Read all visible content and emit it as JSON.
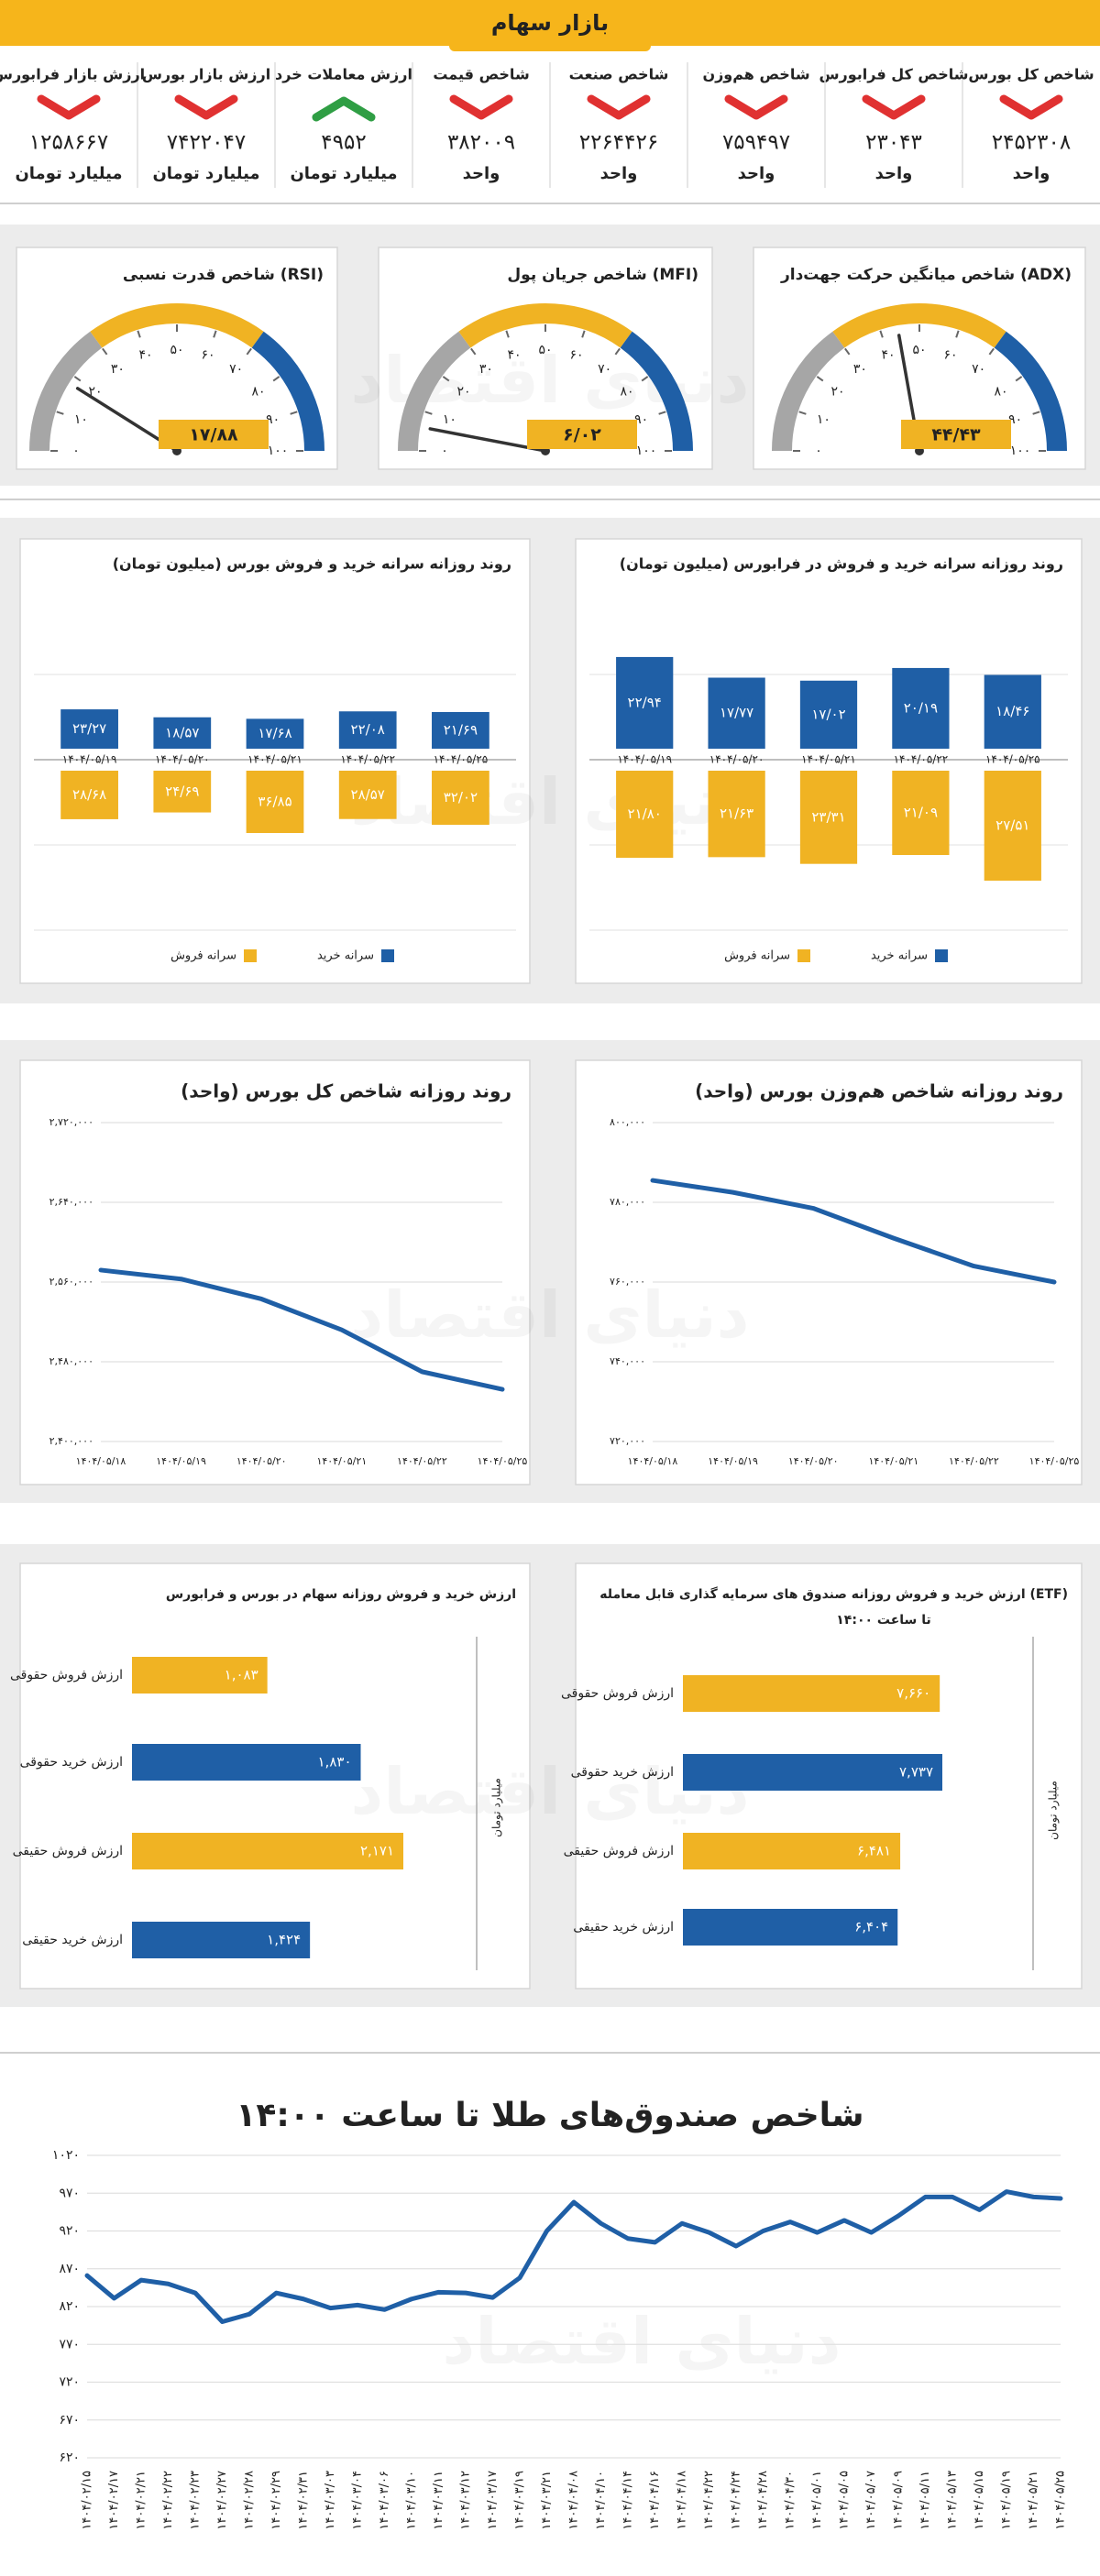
{
  "header": {
    "title": "بازار سهام"
  },
  "watermark": "دنیای اقتصاد",
  "indicators": [
    {
      "label": "شاخص کل بورس",
      "value": "۲۴۵۲۳۰۸",
      "unit": "واحد",
      "trend": "down",
      "color": "#e03131"
    },
    {
      "label": "شاخص کل فرابورس",
      "value": "۲۳۰۴۳",
      "unit": "واحد",
      "trend": "down",
      "color": "#e03131"
    },
    {
      "label": "شاخص هم‌وزن",
      "value": "۷۵۹۴۹۷",
      "unit": "واحد",
      "trend": "down",
      "color": "#e03131"
    },
    {
      "label": "شاخص صنعت",
      "value": "۲۲۶۴۴۲۶",
      "unit": "واحد",
      "trend": "down",
      "color": "#e03131"
    },
    {
      "label": "شاخص قیمت",
      "value": "۳۸۲۰۰۹",
      "unit": "واحد",
      "trend": "down",
      "color": "#e03131"
    },
    {
      "label": "ارزش معاملات خرد",
      "value": "۴۹۵۲",
      "unit": "میلیارد تومان",
      "trend": "up",
      "color": "#2f9e44"
    },
    {
      "label": "ارزش بازار بورس",
      "value": "۷۴۲۲۰۴۷",
      "unit": "میلیارد تومان",
      "trend": "down",
      "color": "#e03131"
    },
    {
      "label": "ارزش بازار فرابورس",
      "value": "۱۲۵۸۶۶۷",
      "unit": "میلیارد تومان",
      "trend": "down",
      "color": "#e03131"
    }
  ],
  "chart_data": [
    {
      "type": "gauge",
      "title": "شاخص میانگین حرکت جهت‌دار (ADX)",
      "value": 44.43,
      "value_label": "۴۴/۴۳",
      "ylim": [
        0,
        100
      ],
      "yticks": [
        {
          "value": 0,
          "label": "۰"
        },
        {
          "value": 10,
          "label": "۱۰"
        },
        {
          "value": 20,
          "label": "۲۰"
        },
        {
          "value": 30,
          "label": "۳۰"
        },
        {
          "value": 40,
          "label": "۴۰"
        },
        {
          "value": 50,
          "label": "۵۰"
        },
        {
          "value": 60,
          "label": "۶۰"
        },
        {
          "value": 70,
          "label": "۷۰"
        },
        {
          "value": 80,
          "label": "۸۰"
        },
        {
          "value": 90,
          "label": "۹۰"
        },
        {
          "value": 100,
          "label": "۱۰۰"
        }
      ],
      "bands": [
        {
          "from": 0,
          "to": 30,
          "color": "#a6a6a6"
        },
        {
          "from": 30,
          "to": 70,
          "color": "#f0b323"
        },
        {
          "from": 70,
          "to": 100,
          "color": "#1f5fa6"
        }
      ]
    },
    {
      "type": "gauge",
      "title": "شاخص جریان پول (MFI)",
      "value": 6.02,
      "value_label": "۶/۰۲",
      "ylim": [
        0,
        100
      ],
      "yticks": [
        {
          "value": 0,
          "label": "۰"
        },
        {
          "value": 10,
          "label": "۱۰"
        },
        {
          "value": 20,
          "label": "۲۰"
        },
        {
          "value": 30,
          "label": "۳۰"
        },
        {
          "value": 40,
          "label": "۴۰"
        },
        {
          "value": 50,
          "label": "۵۰"
        },
        {
          "value": 60,
          "label": "۶۰"
        },
        {
          "value": 70,
          "label": "۷۰"
        },
        {
          "value": 80,
          "label": "۸۰"
        },
        {
          "value": 90,
          "label": "۹۰"
        },
        {
          "value": 100,
          "label": "۱۰۰"
        }
      ],
      "bands": [
        {
          "from": 0,
          "to": 30,
          "color": "#a6a6a6"
        },
        {
          "from": 30,
          "to": 70,
          "color": "#f0b323"
        },
        {
          "from": 70,
          "to": 100,
          "color": "#1f5fa6"
        }
      ]
    },
    {
      "type": "gauge",
      "title": "شاخص قدرت نسبی (RSI)",
      "value": 17.88,
      "value_label": "۱۷/۸۸",
      "ylim": [
        0,
        100
      ],
      "yticks": [
        {
          "value": 0,
          "label": "۰"
        },
        {
          "value": 10,
          "label": "۱۰"
        },
        {
          "value": 20,
          "label": "۲۰"
        },
        {
          "value": 30,
          "label": "۳۰"
        },
        {
          "value": 40,
          "label": "۴۰"
        },
        {
          "value": 50,
          "label": "۵۰"
        },
        {
          "value": 60,
          "label": "۶۰"
        },
        {
          "value": 70,
          "label": "۷۰"
        },
        {
          "value": 80,
          "label": "۸۰"
        },
        {
          "value": 90,
          "label": "۹۰"
        },
        {
          "value": 100,
          "label": "۱۰۰"
        }
      ],
      "bands": [
        {
          "from": 0,
          "to": 30,
          "color": "#a6a6a6"
        },
        {
          "from": 30,
          "to": 70,
          "color": "#f0b323"
        },
        {
          "from": 70,
          "to": 100,
          "color": "#1f5fa6"
        }
      ]
    },
    {
      "type": "diverging",
      "title": "روند روزانه سرانه خرید و فروش در فرابورس (میلیون تومان)",
      "categories": [
        "۱۴۰۴/۰۵/۱۹",
        "۱۴۰۴/۰۵/۲۰",
        "۱۴۰۴/۰۵/۲۱",
        "۱۴۰۴/۰۵/۲۲",
        "۱۴۰۴/۰۵/۲۵"
      ],
      "series": [
        {
          "name": "سرانه خرید",
          "color": "#1f5fa6",
          "values": [
            22.94,
            17.77,
            17.02,
            20.19,
            18.46
          ],
          "value_labels": [
            "۲۲/۹۴",
            "۱۷/۷۷",
            "۱۷/۰۲",
            "۲۰/۱۹",
            "۱۸/۴۶"
          ]
        },
        {
          "name": "سرانه فروش",
          "color": "#f0b323",
          "values": [
            21.8,
            21.63,
            23.31,
            21.09,
            27.51
          ],
          "value_labels": [
            "۲۱/۸۰",
            "۲۱/۶۳",
            "۲۳/۳۱",
            "۲۱/۰۹",
            "۲۷/۵۱"
          ]
        }
      ]
    },
    {
      "type": "diverging",
      "title": "روند روزانه سرانه خرید و فروش بورس (میلیون تومان)",
      "categories": [
        "۱۴۰۴/۰۵/۱۹",
        "۱۴۰۴/۰۵/۲۰",
        "۱۴۰۴/۰۵/۲۱",
        "۱۴۰۴/۰۵/۲۲",
        "۱۴۰۴/۰۵/۲۵"
      ],
      "series": [
        {
          "name": "سرانه خرید",
          "color": "#1f5fa6",
          "values": [
            23.27,
            18.57,
            17.68,
            22.08,
            21.69
          ],
          "value_labels": [
            "۲۳/۲۷",
            "۱۸/۵۷",
            "۱۷/۶۸",
            "۲۲/۰۸",
            "۲۱/۶۹"
          ]
        },
        {
          "name": "سرانه فروش",
          "color": "#f0b323",
          "values": [
            28.68,
            24.69,
            36.85,
            28.57,
            32.02
          ],
          "value_labels": [
            "۲۸/۶۸",
            "۲۴/۶۹",
            "۳۶/۸۵",
            "۲۸/۵۷",
            "۳۲/۰۲"
          ]
        }
      ]
    },
    {
      "type": "line",
      "title": "روند روزانه شاخص هم‌وزن بورس (واحد)",
      "color": "#1f5fa6",
      "grid": true,
      "categories": [
        "۱۴۰۴/۰۵/۱۸",
        "۱۴۰۴/۰۵/۱۹",
        "۱۴۰۴/۰۵/۲۰",
        "۱۴۰۴/۰۵/۲۱",
        "۱۴۰۴/۰۵/۲۲",
        "۱۴۰۴/۰۵/۲۵"
      ],
      "values": [
        785500,
        782500,
        778500,
        771000,
        764000,
        760000
      ],
      "ylim": [
        720000,
        800000
      ],
      "yticks": [
        {
          "value": 720000,
          "label": "۷۲۰,۰۰۰"
        },
        {
          "value": 740000,
          "label": "۷۴۰,۰۰۰"
        },
        {
          "value": 760000,
          "label": "۷۶۰,۰۰۰"
        },
        {
          "value": 780000,
          "label": "۷۸۰,۰۰۰"
        },
        {
          "value": 800000,
          "label": "۸۰۰,۰۰۰"
        }
      ]
    },
    {
      "type": "line",
      "title": "روند روزانه شاخص کل بورس (واحد)",
      "color": "#1f5fa6",
      "grid": true,
      "categories": [
        "۱۴۰۴/۰۵/۱۸",
        "۱۴۰۴/۰۵/۱۹",
        "۱۴۰۴/۰۵/۲۰",
        "۱۴۰۴/۰۵/۲۱",
        "۱۴۰۴/۰۵/۲۲",
        "۱۴۰۴/۰۵/۲۵"
      ],
      "values": [
        2572000,
        2563000,
        2543000,
        2512000,
        2470000,
        2452308
      ],
      "ylim": [
        2400000,
        2720000
      ],
      "yticks": [
        {
          "value": 2400000,
          "label": "۲,۴۰۰,۰۰۰"
        },
        {
          "value": 2480000,
          "label": "۲,۴۸۰,۰۰۰"
        },
        {
          "value": 2560000,
          "label": "۲,۵۶۰,۰۰۰"
        },
        {
          "value": 2640000,
          "label": "۲,۶۴۰,۰۰۰"
        },
        {
          "value": 2720000,
          "label": "۲,۷۲۰,۰۰۰"
        }
      ]
    },
    {
      "type": "hbar",
      "title": "ارزش خرید و فروش روزانه صندوق های سرمایه گذاری قابل معامله (ETF)",
      "subtitle": "تا ساعت ۱۴:۰۰",
      "axis_label": "میلیارد تومان",
      "categories": [
        "ارزش فروش حقوقی",
        "ارزش خرید حقوقی",
        "ارزش فروش حقیقی",
        "ارزش خرید حقیقی"
      ],
      "values": [
        7660,
        7737,
        6481,
        6404
      ],
      "value_labels": [
        "۷,۶۶۰",
        "۷,۷۳۷",
        "۶,۴۸۱",
        "۶,۴۰۴"
      ],
      "colors": [
        "#f0b323",
        "#1f5fa6",
        "#f0b323",
        "#1f5fa6"
      ]
    },
    {
      "type": "hbar",
      "title": "ارزش خرید و فروش روزانه سهام در بورس و فرابورس",
      "axis_label": "میلیارد تومان",
      "categories": [
        "ارزش فروش حقوقی",
        "ارزش خرید حقوقی",
        "ارزش فروش حقیقی",
        "ارزش خرید حقیقی"
      ],
      "values": [
        1083,
        1830,
        2171,
        1424
      ],
      "value_labels": [
        "۱,۰۸۳",
        "۱,۸۳۰",
        "۲,۱۷۱",
        "۱,۴۲۴"
      ],
      "colors": [
        "#f0b323",
        "#1f5fa6",
        "#f0b323",
        "#1f5fa6"
      ]
    },
    {
      "type": "line",
      "title": "شاخص صندوق‌های طلا تا ساعت ۱۴:۰۰",
      "color": "#1f5fa6",
      "grid": true,
      "categories": [
        "۱۴۰۴/۰۲/۱۵",
        "۱۴۰۴/۰۲/۱۷",
        "۱۴۰۴/۰۲/۲۱",
        "۱۴۰۴/۰۲/۲۲",
        "۱۴۰۴/۰۲/۲۳",
        "۱۴۰۴/۰۲/۲۷",
        "۱۴۰۴/۰۲/۲۸",
        "۱۴۰۴/۰۲/۲۹",
        "۱۴۰۴/۰۲/۳۱",
        "۱۴۰۴/۰۳/۰۳",
        "۱۴۰۴/۰۳/۰۴",
        "۱۴۰۴/۰۳/۰۶",
        "۱۴۰۴/۰۳/۱۰",
        "۱۴۰۴/۰۳/۱۱",
        "۱۴۰۴/۰۳/۱۲",
        "۱۴۰۴/۰۳/۱۷",
        "۱۴۰۴/۰۳/۱۹",
        "۱۴۰۴/۰۳/۲۱",
        "۱۴۰۴/۰۴/۰۸",
        "۱۴۰۴/۰۴/۱۰",
        "۱۴۰۴/۰۴/۱۴",
        "۱۴۰۴/۰۴/۱۶",
        "۱۴۰۴/۰۴/۱۸",
        "۱۴۰۴/۰۴/۲۲",
        "۱۴۰۴/۰۴/۲۴",
        "۱۴۰۴/۰۴/۲۸",
        "۱۴۰۴/۰۴/۳۰",
        "۱۴۰۴/۰۵/۰۱",
        "۱۴۰۴/۰۵/۰۵",
        "۱۴۰۴/۰۵/۰۷",
        "۱۴۰۴/۰۵/۰۹",
        "۱۴۰۴/۰۵/۱۱",
        "۱۴۰۴/۰۵/۱۳",
        "۱۴۰۴/۰۵/۱۵",
        "۱۴۰۴/۰۵/۱۹",
        "۱۴۰۴/۰۵/۲۱",
        "۱۴۰۴/۰۵/۲۵"
      ],
      "values": [
        861,
        831,
        855,
        850,
        838,
        800,
        810,
        838,
        830,
        818,
        822,
        816,
        830,
        839,
        838,
        832,
        858,
        920,
        958,
        930,
        910,
        905,
        930,
        918,
        900,
        920,
        932,
        918,
        934,
        918,
        940,
        965,
        965,
        948,
        972,
        965,
        963
      ],
      "ylim": [
        620,
        1020
      ],
      "yticks": [
        {
          "value": 620,
          "label": "۶۲۰"
        },
        {
          "value": 670,
          "label": "۶۷۰"
        },
        {
          "value": 720,
          "label": "۷۲۰"
        },
        {
          "value": 770,
          "label": "۷۷۰"
        },
        {
          "value": 820,
          "label": "۸۲۰"
        },
        {
          "value": 870,
          "label": "۸۷۰"
        },
        {
          "value": 920,
          "label": "۹۲۰"
        },
        {
          "value": 970,
          "label": "۹۷۰"
        },
        {
          "value": 1020,
          "label": "۱۰۲۰"
        }
      ]
    }
  ]
}
